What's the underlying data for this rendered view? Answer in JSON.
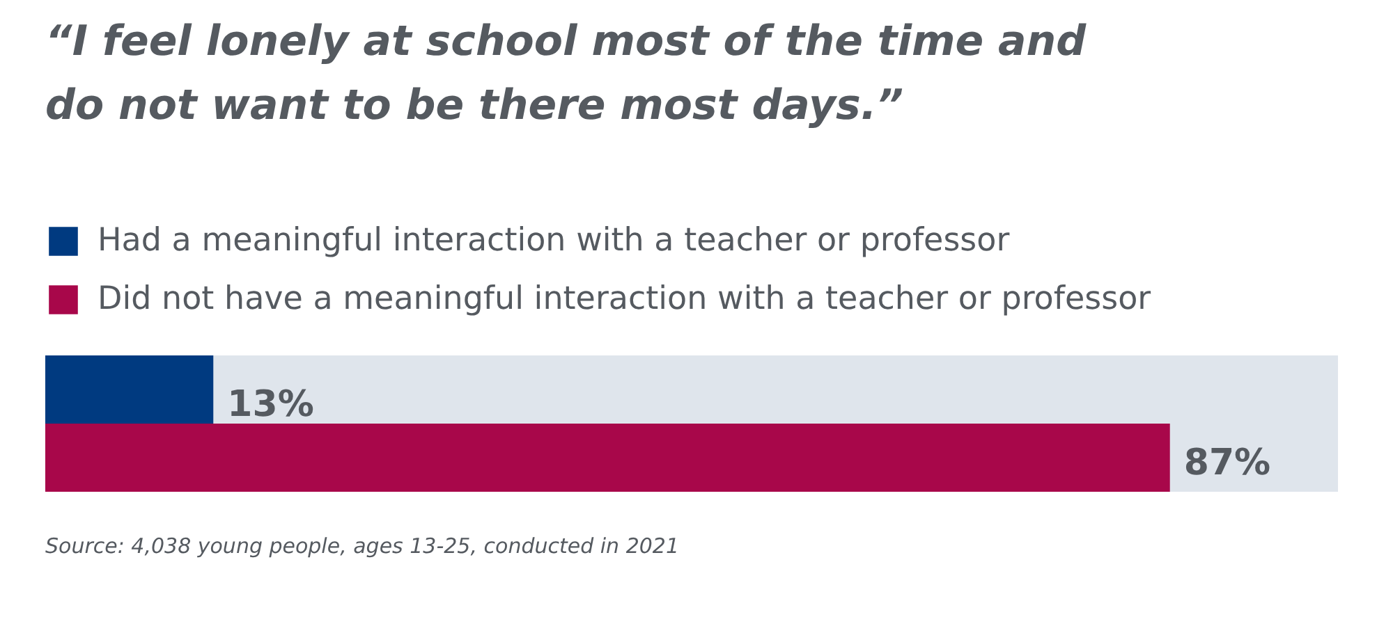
{
  "chart_data": {
    "type": "bar",
    "orientation": "horizontal",
    "title": "“I feel lonely at school most of the time and\n do not want to be there most days.”",
    "categories": [
      null
    ],
    "series": [
      {
        "name": "Had a meaningful interaction with a teacher or professor",
        "color": "#003a80",
        "values": [
          13
        ],
        "value_labels": [
          "13%"
        ]
      },
      {
        "name": "Did not have a meaningful interaction with a teacher or professor",
        "color": "#a8074a",
        "values": [
          87
        ],
        "value_labels": [
          "87%"
        ]
      }
    ],
    "xlim": [
      0,
      100
    ],
    "legend": "top left",
    "tick_labels": false,
    "bands": [
      {
        "axis": "x",
        "from": 0,
        "to": 100,
        "color": "#dfe5ec"
      }
    ],
    "annotations": [
      "Source: 4,038 young people, ages 13-25, conducted in 2021"
    ]
  }
}
